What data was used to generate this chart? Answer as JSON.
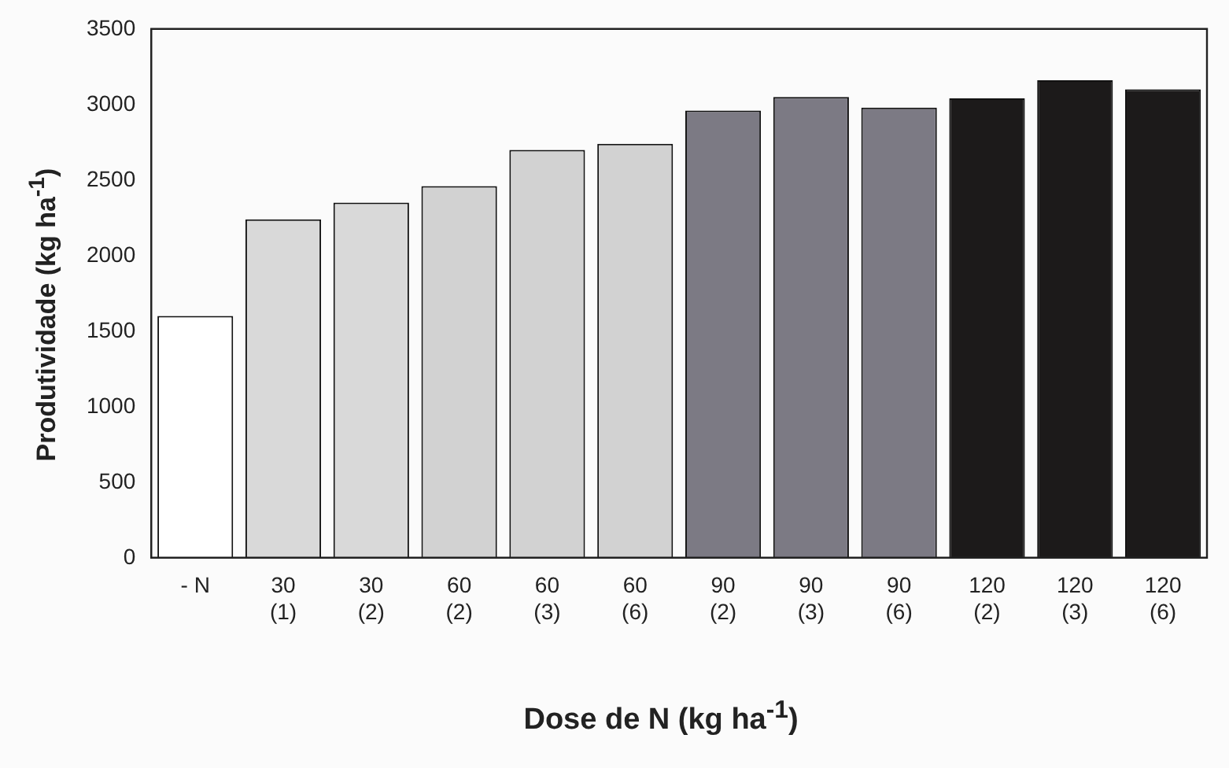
{
  "chart_data": {
    "type": "bar",
    "xlabel": "Dose de N (kg ha$^{-1}$)",
    "ylabel": "Produtividade (kg ha$^{-1}$)",
    "categories": [
      "- N",
      "30\n(1)",
      "30\n(2)",
      "60\n(2)",
      "60\n(3)",
      "60\n(6)",
      "90\n(2)",
      "90\n(3)",
      "90\n(6)",
      "120\n(2)",
      "120\n(3)",
      "120\n(6)"
    ],
    "values": [
      1600,
      2240,
      2350,
      2460,
      2700,
      2740,
      2960,
      3050,
      2980,
      3040,
      3160,
      3100
    ],
    "colors": [
      "#ffffff",
      "#d9d9d9",
      "#d9d9d9",
      "#d2d2d2",
      "#d2d2d2",
      "#d2d2d2",
      "#7c7a84",
      "#7c7a84",
      "#7c7a84",
      "#1c1a1a",
      "#1c1a1a",
      "#1c1a1a"
    ],
    "ylim": [
      0,
      3500
    ],
    "yticks": [
      0,
      500,
      1000,
      1500,
      2000,
      2500,
      3000,
      3500
    ],
    "grid": false,
    "legend": false
  }
}
